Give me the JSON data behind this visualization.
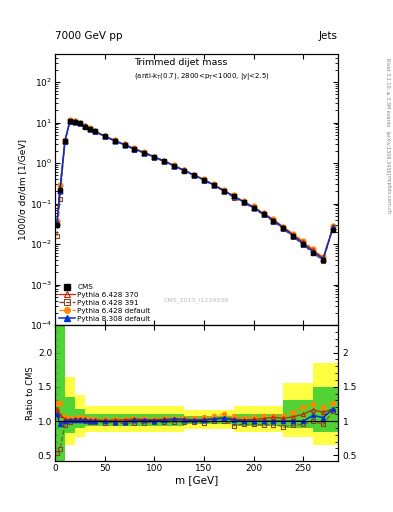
{
  "header_left": "7000 GeV pp",
  "header_right": "Jets",
  "watermark": "CMS_2013_I1224539",
  "rivet_label": "Rivet 3.1.10, ≥ 3.3M events",
  "arxiv_label": "[arXiv:1306.3436]",
  "mcplots_label": "mcplots.cern.ch",
  "xlabel": "m [GeV]",
  "ylabel_main": "1000/σ dσ/dm [1/GeV]",
  "ylabel_ratio": "Ratio to CMS",
  "title_text": "Trimmed dijet mass",
  "title_sub": "(anti-k_{T}(0.7), 2800<p_{T}<1000, |y|<2.5)",
  "xlim": [
    0,
    285
  ],
  "ylim_main": [
    0.0001,
    500
  ],
  "ylim_ratio": [
    0.42,
    2.4
  ],
  "cms_x": [
    2,
    5,
    10,
    15,
    20,
    25,
    30,
    35,
    40,
    50,
    60,
    70,
    80,
    90,
    100,
    110,
    120,
    130,
    140,
    150,
    160,
    170,
    180,
    190,
    200,
    210,
    220,
    230,
    240,
    250,
    260,
    270,
    280
  ],
  "cms_y": [
    0.03,
    0.22,
    3.5,
    10.8,
    10.5,
    9.5,
    8.0,
    7.0,
    6.1,
    4.6,
    3.6,
    2.85,
    2.2,
    1.78,
    1.4,
    1.1,
    0.84,
    0.65,
    0.5,
    0.38,
    0.28,
    0.2,
    0.15,
    0.11,
    0.08,
    0.055,
    0.038,
    0.025,
    0.016,
    0.01,
    0.006,
    0.004,
    0.022
  ],
  "py6_370_x": [
    2,
    5,
    10,
    15,
    20,
    25,
    30,
    35,
    40,
    50,
    60,
    70,
    80,
    90,
    100,
    110,
    120,
    130,
    140,
    150,
    160,
    170,
    180,
    190,
    200,
    210,
    220,
    230,
    240,
    250,
    260,
    270,
    280
  ],
  "py6_370_y": [
    0.035,
    0.24,
    3.6,
    11.0,
    10.8,
    9.8,
    8.2,
    7.1,
    6.2,
    4.65,
    3.65,
    2.9,
    2.27,
    1.82,
    1.43,
    1.13,
    0.87,
    0.67,
    0.51,
    0.39,
    0.29,
    0.21,
    0.155,
    0.112,
    0.082,
    0.057,
    0.04,
    0.026,
    0.017,
    0.011,
    0.007,
    0.0045,
    0.026
  ],
  "py6_391_x": [
    2,
    5,
    10,
    15,
    20,
    25,
    30,
    35,
    40,
    50,
    60,
    70,
    80,
    90,
    100,
    110,
    120,
    130,
    140,
    150,
    160,
    170,
    180,
    190,
    200,
    210,
    220,
    230,
    240,
    250,
    260,
    270,
    280
  ],
  "py6_391_y": [
    0.016,
    0.13,
    3.3,
    10.6,
    10.6,
    9.6,
    8.0,
    6.9,
    5.98,
    4.5,
    3.5,
    2.75,
    2.15,
    1.73,
    1.38,
    1.08,
    0.83,
    0.64,
    0.49,
    0.37,
    0.28,
    0.2,
    0.14,
    0.105,
    0.076,
    0.052,
    0.036,
    0.023,
    0.015,
    0.0095,
    0.006,
    0.0038,
    0.025
  ],
  "py6_def_x": [
    2,
    5,
    10,
    15,
    20,
    25,
    30,
    35,
    40,
    50,
    60,
    70,
    80,
    90,
    100,
    110,
    120,
    130,
    140,
    150,
    160,
    170,
    180,
    190,
    200,
    210,
    220,
    230,
    240,
    250,
    260,
    270,
    280
  ],
  "py6_def_y": [
    0.038,
    0.28,
    3.7,
    11.3,
    11.0,
    10.0,
    8.4,
    7.2,
    6.25,
    4.72,
    3.72,
    2.95,
    2.3,
    1.85,
    1.45,
    1.15,
    0.88,
    0.68,
    0.52,
    0.4,
    0.3,
    0.22,
    0.16,
    0.115,
    0.085,
    0.059,
    0.041,
    0.027,
    0.018,
    0.012,
    0.0075,
    0.0048,
    0.028
  ],
  "py8_def_x": [
    2,
    5,
    10,
    15,
    20,
    25,
    30,
    35,
    40,
    50,
    60,
    70,
    80,
    90,
    100,
    110,
    120,
    130,
    140,
    150,
    160,
    170,
    180,
    190,
    200,
    210,
    220,
    230,
    240,
    250,
    260,
    270,
    280
  ],
  "py8_def_y": [
    0.033,
    0.21,
    3.5,
    10.9,
    10.6,
    9.6,
    8.1,
    7.05,
    6.1,
    4.58,
    3.57,
    2.83,
    2.22,
    1.8,
    1.41,
    1.11,
    0.86,
    0.66,
    0.505,
    0.385,
    0.288,
    0.208,
    0.152,
    0.11,
    0.08,
    0.055,
    0.038,
    0.025,
    0.016,
    0.01,
    0.0065,
    0.0042,
    0.026
  ],
  "ratio_x": [
    2,
    5,
    10,
    15,
    20,
    25,
    30,
    35,
    40,
    50,
    60,
    70,
    80,
    90,
    100,
    110,
    120,
    130,
    140,
    150,
    160,
    170,
    180,
    190,
    200,
    210,
    220,
    230,
    240,
    250,
    260,
    270,
    280
  ],
  "ratio_py6_370": [
    1.17,
    1.09,
    1.03,
    1.02,
    1.03,
    1.03,
    1.025,
    1.014,
    1.016,
    1.011,
    1.014,
    1.018,
    1.032,
    1.022,
    1.021,
    1.027,
    1.036,
    1.031,
    1.02,
    1.026,
    1.036,
    1.05,
    1.033,
    1.018,
    1.025,
    1.036,
    1.053,
    1.04,
    1.063,
    1.1,
    1.167,
    1.125,
    1.18
  ],
  "ratio_py6_391": [
    0.53,
    0.59,
    0.94,
    0.98,
    1.01,
    1.01,
    1.0,
    0.986,
    0.981,
    0.978,
    0.972,
    0.965,
    0.977,
    0.972,
    0.986,
    0.982,
    0.988,
    0.985,
    0.98,
    0.974,
    1.0,
    1.0,
    0.933,
    0.955,
    0.95,
    0.945,
    0.947,
    0.92,
    0.938,
    0.95,
    1.0,
    0.95,
    1.14
  ],
  "ratio_py6_def": [
    1.27,
    1.27,
    1.06,
    1.046,
    1.048,
    1.053,
    1.05,
    1.029,
    1.025,
    1.026,
    1.033,
    1.035,
    1.045,
    1.039,
    1.036,
    1.045,
    1.048,
    1.046,
    1.04,
    1.053,
    1.071,
    1.1,
    1.067,
    1.045,
    1.063,
    1.073,
    1.079,
    1.08,
    1.125,
    1.2,
    1.25,
    1.2,
    1.27
  ],
  "ratio_py8_def": [
    1.1,
    0.95,
    1.0,
    1.009,
    1.01,
    1.011,
    1.013,
    1.0,
    1.0,
    0.996,
    0.992,
    0.993,
    1.009,
    1.011,
    1.007,
    1.009,
    1.024,
    1.015,
    1.01,
    1.013,
    1.029,
    1.04,
    1.013,
    1.0,
    1.0,
    1.0,
    1.0,
    1.0,
    1.0,
    1.0,
    1.083,
    1.05,
    1.18
  ],
  "band_yellow_lo": [
    0.42,
    0.42,
    0.65,
    0.65,
    0.77,
    0.77,
    0.84,
    0.84,
    0.84,
    0.84,
    0.88,
    0.88,
    0.84,
    0.84,
    0.77,
    0.77,
    0.65,
    0.65,
    0.42,
    0.42
  ],
  "band_yellow_hi": [
    2.4,
    2.4,
    1.65,
    1.65,
    1.38,
    1.38,
    1.22,
    1.22,
    1.22,
    1.22,
    1.16,
    1.16,
    1.22,
    1.22,
    1.55,
    1.55,
    1.85,
    1.85,
    2.4,
    2.4
  ],
  "band_green_lo": [
    0.42,
    0.42,
    0.82,
    0.82,
    0.9,
    0.9,
    0.93,
    0.93,
    0.93,
    0.93,
    0.96,
    0.96,
    0.93,
    0.93,
    0.9,
    0.9,
    0.84,
    0.84,
    0.55,
    0.55
  ],
  "band_green_hi": [
    2.4,
    2.4,
    1.35,
    1.35,
    1.18,
    1.18,
    1.1,
    1.1,
    1.1,
    1.1,
    1.07,
    1.07,
    1.1,
    1.1,
    1.3,
    1.3,
    1.5,
    1.5,
    2.4,
    2.4
  ],
  "band_x": [
    0,
    10,
    10,
    20,
    20,
    30,
    30,
    80,
    80,
    130,
    130,
    180,
    180,
    230,
    230,
    260,
    260,
    285,
    285,
    285
  ],
  "color_cms": "#000000",
  "color_py6_370": "#cc2200",
  "color_py6_391": "#884422",
  "color_py6_def": "#ff8800",
  "color_py8_def": "#0033cc",
  "color_yellow": "#ffff44",
  "color_green": "#33cc33",
  "bg_color": "#ffffff"
}
